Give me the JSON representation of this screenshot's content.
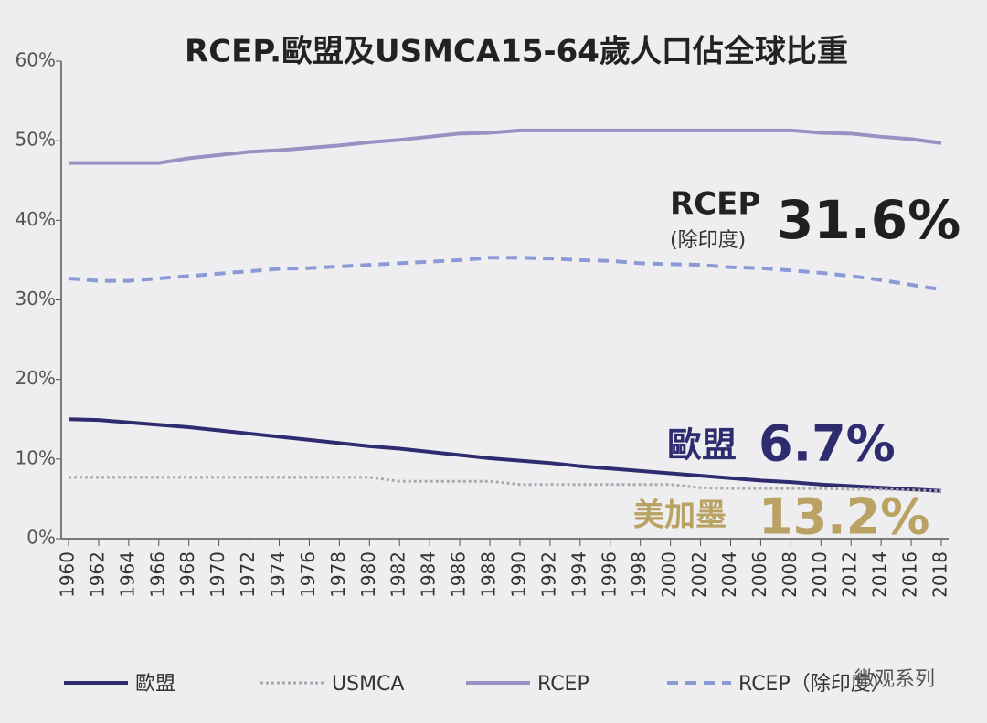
{
  "chart_data": {
    "type": "line",
    "title": "RCEP.歐盟及USMCA15-64歲人口佔全球比重",
    "x": [
      1960,
      1962,
      1964,
      1966,
      1968,
      1970,
      1972,
      1974,
      1976,
      1978,
      1980,
      1982,
      1984,
      1986,
      1988,
      1990,
      1992,
      1994,
      1996,
      1998,
      2000,
      2002,
      2004,
      2006,
      2008,
      2010,
      2012,
      2014,
      2016,
      2018
    ],
    "xlim": [
      1960,
      2018
    ],
    "xticks": [
      1960,
      1962,
      1964,
      1966,
      1968,
      1970,
      1972,
      1974,
      1976,
      1978,
      1980,
      1982,
      1984,
      1986,
      1988,
      1990,
      1992,
      1994,
      1996,
      1998,
      2000,
      2002,
      2004,
      2006,
      2008,
      2010,
      2012,
      2014,
      2016,
      2018
    ],
    "ylim": [
      0,
      60
    ],
    "yticks": [
      {
        "value": 0,
        "label": "0%"
      },
      {
        "value": 10,
        "label": "10%"
      },
      {
        "value": 20,
        "label": "20%"
      },
      {
        "value": 30,
        "label": "30%"
      },
      {
        "value": 40,
        "label": "40%"
      },
      {
        "value": 50,
        "label": "50%"
      },
      {
        "value": 60,
        "label": "60%"
      }
    ],
    "series": [
      {
        "name": "歐盟",
        "color": "#2e2b6f",
        "style": "solid",
        "values": [
          15.0,
          14.9,
          14.6,
          14.3,
          14.0,
          13.6,
          13.2,
          12.8,
          12.4,
          12.0,
          11.6,
          11.3,
          10.9,
          10.5,
          10.1,
          9.8,
          9.5,
          9.1,
          8.8,
          8.5,
          8.2,
          7.9,
          7.6,
          7.3,
          7.1,
          6.8,
          6.6,
          6.4,
          6.2,
          6.0
        ]
      },
      {
        "name": "USMCA",
        "color": "#a8a8ad",
        "style": "dotted",
        "values": [
          7.7,
          7.7,
          7.7,
          7.7,
          7.7,
          7.7,
          7.7,
          7.7,
          7.7,
          7.7,
          7.7,
          7.2,
          7.2,
          7.2,
          7.2,
          6.8,
          6.8,
          6.8,
          6.8,
          6.8,
          6.8,
          6.4,
          6.3,
          6.3,
          6.3,
          6.3,
          6.2,
          6.2,
          6.1,
          6.0
        ]
      },
      {
        "name": "RCEP",
        "color": "#9a90c2",
        "style": "solid",
        "values": [
          47.2,
          47.2,
          47.2,
          47.2,
          47.8,
          48.2,
          48.6,
          48.8,
          49.1,
          49.4,
          49.8,
          50.1,
          50.5,
          50.9,
          51.0,
          51.3,
          51.3,
          51.3,
          51.3,
          51.3,
          51.3,
          51.3,
          51.3,
          51.3,
          51.3,
          51.0,
          50.9,
          50.5,
          50.2,
          49.7
        ]
      },
      {
        "name": "RCEP（除印度）",
        "color": "#8b9ad6",
        "style": "dashed",
        "values": [
          32.7,
          32.4,
          32.4,
          32.7,
          33.0,
          33.3,
          33.6,
          33.9,
          34.0,
          34.2,
          34.4,
          34.6,
          34.8,
          35.0,
          35.3,
          35.3,
          35.2,
          35.0,
          34.9,
          34.6,
          34.5,
          34.4,
          34.1,
          34.0,
          33.7,
          33.4,
          33.0,
          32.5,
          31.9,
          31.3
        ]
      }
    ],
    "annotations": [
      "RCEP",
      "(除印度)",
      "31.6%",
      "歐盟",
      "6.7%",
      "美加墨",
      "13.2%",
      "微观系列"
    ]
  }
}
